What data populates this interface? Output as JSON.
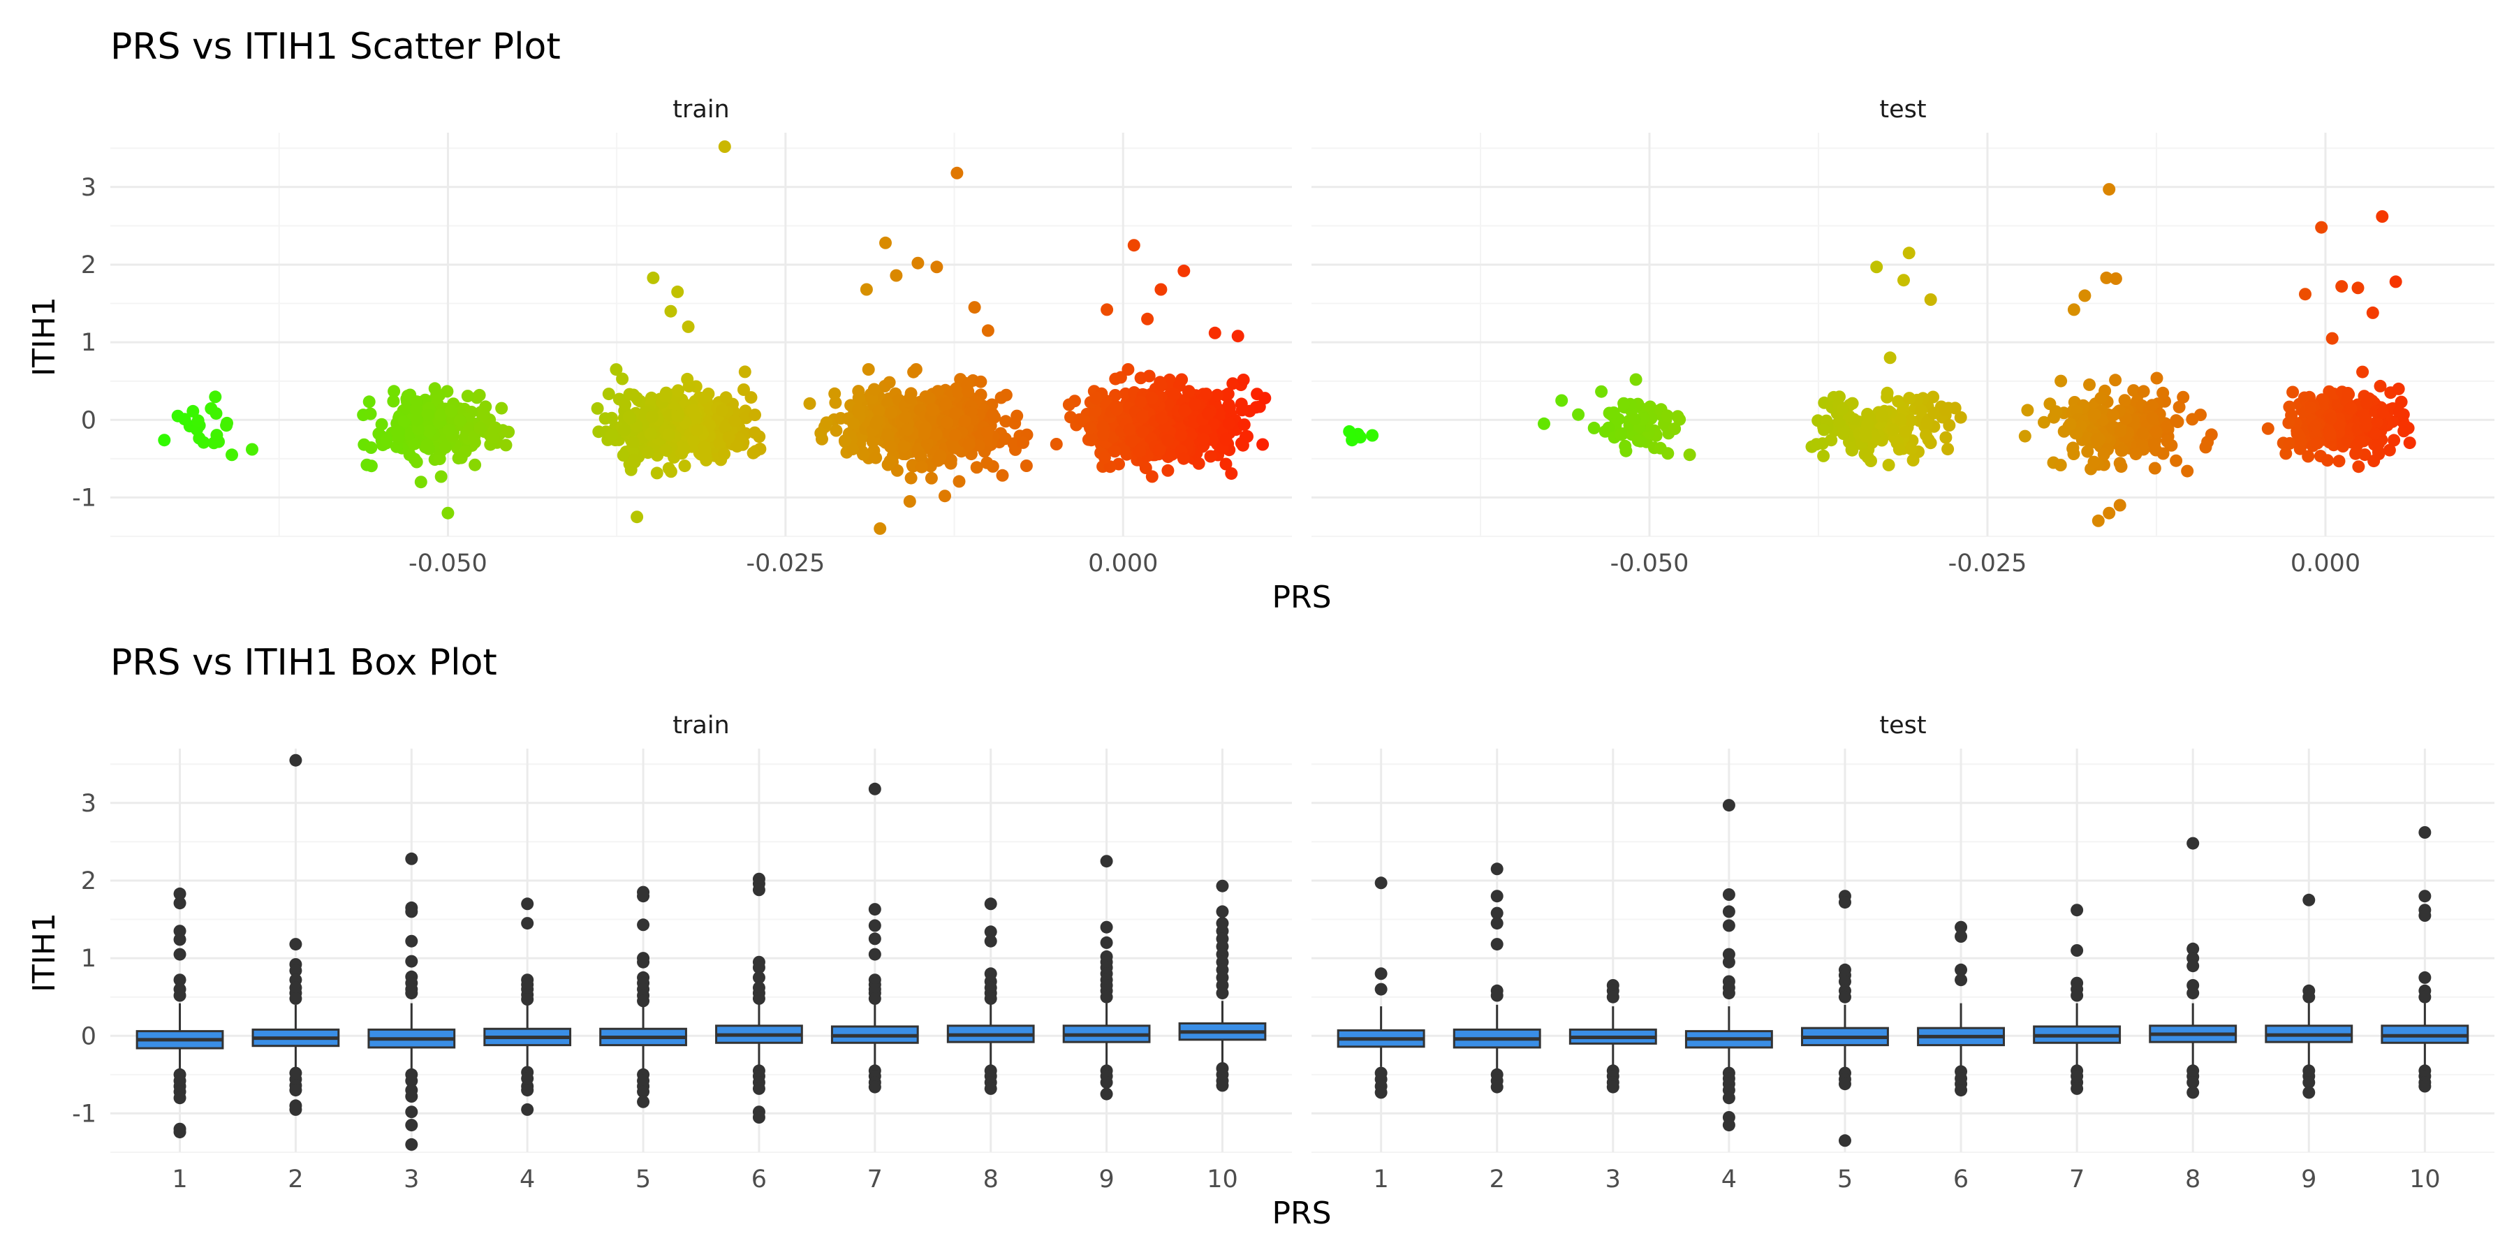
{
  "figure": {
    "background": "#ffffff"
  },
  "colors": {
    "grid_major": "#ebebeb",
    "grid_minor": "#f4f4f4",
    "box_fill": "#3a8ee6",
    "box_line": "#333333",
    "outlier": "#333333",
    "gradient_low": "#22ff00",
    "gradient_high": "#ff1a00"
  },
  "chart_data": [
    {
      "type": "scatter",
      "title": "PRS vs ITIH1 Scatter Plot",
      "xlabel": "PRS",
      "ylabel": "ITIH1",
      "xlim": [
        -0.075,
        0.0125
      ],
      "ylim": [
        -1.5,
        3.7
      ],
      "x_ticks": [
        -0.05,
        -0.025,
        0.0
      ],
      "x_tick_labels": [
        "-0.050",
        "-0.025",
        "0.000"
      ],
      "y_ticks": [
        -1,
        0,
        1,
        2,
        3
      ],
      "y_tick_labels": [
        "-1",
        "0",
        "1",
        "2",
        "3"
      ],
      "color_by": "PRS",
      "color_scale": {
        "low": "#22ff00",
        "high": "#ff1a00"
      },
      "panels": [
        {
          "name": "train",
          "clusters": [
            {
              "x_range": [
                -0.072,
                -0.0645
              ],
              "y_mean": -0.12,
              "y_sd": 0.14,
              "n": 14
            },
            {
              "x_range": [
                -0.057,
                -0.045
              ],
              "y_mean": -0.08,
              "y_sd": 0.2,
              "n": 240
            },
            {
              "x_range": [
                -0.04,
                -0.0255
              ],
              "y_mean": -0.1,
              "y_sd": 0.22,
              "n": 420
            },
            {
              "x_range": [
                -0.024,
                -0.0055
              ],
              "y_mean": -0.08,
              "y_sd": 0.24,
              "n": 560
            },
            {
              "x_range": [
                -0.0055,
                0.011
              ],
              "y_mean": -0.05,
              "y_sd": 0.22,
              "n": 640
            }
          ],
          "outliers": [
            [
              -0.0695,
              0.01
            ],
            [
              -0.07,
              0.05
            ],
            [
              -0.0685,
              -0.01
            ],
            [
              -0.071,
              -0.26
            ],
            [
              -0.066,
              -0.45
            ],
            [
              -0.0645,
              -0.38
            ],
            [
              -0.056,
              -0.58
            ],
            [
              -0.052,
              -0.8
            ],
            [
              -0.05,
              -1.2
            ],
            [
              -0.048,
              -0.58
            ],
            [
              -0.036,
              -1.25
            ],
            [
              -0.0348,
              1.83
            ],
            [
              -0.0335,
              1.4
            ],
            [
              -0.0322,
              1.2
            ],
            [
              -0.033,
              1.65
            ],
            [
              -0.0295,
              3.52
            ],
            [
              -0.028,
              0.62
            ],
            [
              -0.0176,
              2.28
            ],
            [
              -0.0168,
              1.86
            ],
            [
              -0.0152,
              2.02
            ],
            [
              -0.0138,
              1.97
            ],
            [
              -0.019,
              1.68
            ],
            [
              -0.0123,
              3.18
            ],
            [
              -0.0158,
              -1.05
            ],
            [
              -0.018,
              -1.4
            ],
            [
              -0.0132,
              -0.98
            ],
            [
              -0.011,
              1.45
            ],
            [
              -0.01,
              1.15
            ],
            [
              0.0008,
              2.25
            ],
            [
              0.0045,
              1.92
            ],
            [
              0.0028,
              1.68
            ],
            [
              -0.0012,
              1.42
            ],
            [
              0.0018,
              1.3
            ],
            [
              0.0068,
              1.12
            ],
            [
              0.0085,
              1.08
            ],
            [
              0.0105,
              0.28
            ]
          ]
        },
        {
          "name": "test",
          "clusters": [
            {
              "x_range": [
                -0.072,
                -0.071
              ],
              "y_mean": -0.22,
              "y_sd": 0.06,
              "n": 3
            },
            {
              "x_range": [
                -0.0555,
                -0.046
              ],
              "y_mean": -0.06,
              "y_sd": 0.18,
              "n": 70
            },
            {
              "x_range": [
                -0.04,
                -0.026
              ],
              "y_mean": -0.1,
              "y_sd": 0.2,
              "n": 150
            },
            {
              "x_range": [
                -0.0235,
                -0.0065
              ],
              "y_mean": -0.08,
              "y_sd": 0.24,
              "n": 200
            },
            {
              "x_range": [
                -0.005,
                0.0085
              ],
              "y_mean": -0.05,
              "y_sd": 0.22,
              "n": 230
            }
          ],
          "outliers": [
            [
              -0.0722,
              -0.15
            ],
            [
              -0.072,
              -0.26
            ],
            [
              -0.0705,
              -0.2
            ],
            [
              -0.0578,
              -0.05
            ],
            [
              -0.0565,
              0.25
            ],
            [
              -0.051,
              0.52
            ],
            [
              -0.0332,
              1.97
            ],
            [
              -0.0308,
              2.15
            ],
            [
              -0.0312,
              1.8
            ],
            [
              -0.0292,
              1.55
            ],
            [
              -0.0322,
              0.8
            ],
            [
              -0.016,
              2.97
            ],
            [
              -0.0178,
              1.6
            ],
            [
              -0.0162,
              1.83
            ],
            [
              -0.0155,
              1.82
            ],
            [
              -0.0186,
              1.42
            ],
            [
              -0.0168,
              -1.3
            ],
            [
              -0.0152,
              -1.1
            ],
            [
              -0.016,
              -1.2
            ],
            [
              -0.0003,
              2.48
            ],
            [
              0.0042,
              2.62
            ],
            [
              -0.0015,
              1.62
            ],
            [
              0.0012,
              1.72
            ],
            [
              0.0024,
              1.7
            ],
            [
              0.0052,
              1.78
            ],
            [
              0.0005,
              1.05
            ],
            [
              0.0035,
              1.38
            ]
          ]
        }
      ]
    },
    {
      "type": "box",
      "title": "PRS vs ITIH1 Box Plot",
      "xlabel": "PRS",
      "ylabel": "ITIH1",
      "ylim": [
        -1.5,
        3.7
      ],
      "categories": [
        "1",
        "2",
        "3",
        "4",
        "5",
        "6",
        "7",
        "8",
        "9",
        "10"
      ],
      "y_ticks": [
        -1,
        0,
        1,
        2,
        3
      ],
      "y_tick_labels": [
        "-1",
        "0",
        "1",
        "2",
        "3"
      ],
      "panels": [
        {
          "name": "train",
          "boxes": [
            {
              "q1": -0.16,
              "median": -0.05,
              "q3": 0.06,
              "lower": -0.48,
              "upper": 0.42,
              "outliers": [
                1.83,
                1.71,
                1.35,
                1.24,
                1.05,
                0.72,
                0.6,
                0.52,
                -0.5,
                -0.58,
                -0.65,
                -0.72,
                -0.8,
                -1.2,
                -1.24
              ]
            },
            {
              "q1": -0.13,
              "median": -0.03,
              "q3": 0.08,
              "lower": -0.45,
              "upper": 0.4,
              "outliers": [
                3.55,
                1.18,
                0.92,
                0.84,
                0.72,
                0.62,
                0.55,
                0.48,
                -0.48,
                -0.56,
                -0.64,
                -0.7,
                -0.9,
                -0.95
              ]
            },
            {
              "q1": -0.15,
              "median": -0.04,
              "q3": 0.08,
              "lower": -0.47,
              "upper": 0.42,
              "outliers": [
                2.28,
                1.65,
                1.6,
                1.22,
                0.96,
                0.76,
                0.68,
                0.6,
                0.55,
                -0.5,
                -0.58,
                -0.7,
                -0.78,
                -0.98,
                -1.15,
                -1.4
              ]
            },
            {
              "q1": -0.12,
              "median": -0.02,
              "q3": 0.09,
              "lower": -0.43,
              "upper": 0.4,
              "outliers": [
                1.7,
                1.45,
                0.72,
                0.66,
                0.6,
                0.53,
                0.47,
                -0.47,
                -0.55,
                -0.65,
                -0.7,
                -0.95
              ]
            },
            {
              "q1": -0.12,
              "median": -0.02,
              "q3": 0.09,
              "lower": -0.43,
              "upper": 0.4,
              "outliers": [
                1.85,
                1.8,
                1.43,
                1.0,
                0.95,
                0.75,
                0.68,
                0.6,
                0.52,
                0.45,
                -0.5,
                -0.58,
                -0.65,
                -0.72,
                -0.85
              ]
            },
            {
              "q1": -0.09,
              "median": 0.01,
              "q3": 0.13,
              "lower": -0.4,
              "upper": 0.42,
              "outliers": [
                2.02,
                1.96,
                1.88,
                0.95,
                0.88,
                0.75,
                0.62,
                0.55,
                0.48,
                -0.45,
                -0.52,
                -0.6,
                -0.68,
                -0.98,
                -1.05
              ]
            },
            {
              "q1": -0.09,
              "median": 0.0,
              "q3": 0.12,
              "lower": -0.4,
              "upper": 0.42,
              "outliers": [
                3.18,
                1.63,
                1.42,
                1.25,
                1.05,
                0.72,
                0.66,
                0.6,
                0.55,
                0.48,
                -0.45,
                -0.52,
                -0.6,
                -0.66
              ]
            },
            {
              "q1": -0.08,
              "median": 0.01,
              "q3": 0.13,
              "lower": -0.4,
              "upper": 0.42,
              "outliers": [
                1.7,
                1.34,
                1.22,
                0.8,
                0.7,
                0.62,
                0.55,
                0.48,
                -0.45,
                -0.52,
                -0.6,
                -0.68
              ]
            },
            {
              "q1": -0.08,
              "median": 0.01,
              "q3": 0.13,
              "lower": -0.4,
              "upper": 0.42,
              "outliers": [
                2.25,
                1.4,
                1.2,
                1.02,
                0.95,
                0.88,
                0.8,
                0.72,
                0.65,
                0.58,
                0.5,
                -0.45,
                -0.52,
                -0.6,
                -0.75
              ]
            },
            {
              "q1": -0.05,
              "median": 0.05,
              "q3": 0.16,
              "lower": -0.35,
              "upper": 0.45,
              "outliers": [
                1.93,
                1.6,
                1.45,
                1.35,
                1.25,
                1.15,
                1.05,
                0.95,
                0.85,
                0.75,
                0.65,
                0.55,
                -0.42,
                -0.5,
                -0.58,
                -0.64
              ]
            }
          ]
        },
        {
          "name": "test",
          "boxes": [
            {
              "q1": -0.14,
              "median": -0.04,
              "q3": 0.07,
              "lower": -0.4,
              "upper": 0.38,
              "outliers": [
                1.97,
                0.8,
                0.6,
                -0.48,
                -0.56,
                -0.65,
                -0.73
              ]
            },
            {
              "q1": -0.15,
              "median": -0.04,
              "q3": 0.08,
              "lower": -0.45,
              "upper": 0.4,
              "outliers": [
                2.15,
                1.8,
                1.58,
                1.45,
                1.18,
                0.58,
                0.52,
                -0.5,
                -0.58,
                -0.66
              ]
            },
            {
              "q1": -0.1,
              "median": -0.02,
              "q3": 0.08,
              "lower": -0.4,
              "upper": 0.38,
              "outliers": [
                0.65,
                0.58,
                0.5,
                -0.45,
                -0.52,
                -0.6,
                -0.66
              ]
            },
            {
              "q1": -0.15,
              "median": -0.04,
              "q3": 0.06,
              "lower": -0.42,
              "upper": 0.38,
              "outliers": [
                2.97,
                1.82,
                1.6,
                1.42,
                1.05,
                0.95,
                0.7,
                0.62,
                0.55,
                -0.48,
                -0.55,
                -0.62,
                -0.7,
                -0.8,
                -1.05,
                -1.15
              ]
            },
            {
              "q1": -0.12,
              "median": -0.02,
              "q3": 0.1,
              "lower": -0.42,
              "upper": 0.4,
              "outliers": [
                1.8,
                1.72,
                0.85,
                0.78,
                0.7,
                0.58,
                0.5,
                -0.48,
                -0.56,
                -0.62,
                -1.35
              ]
            },
            {
              "q1": -0.12,
              "median": -0.01,
              "q3": 0.1,
              "lower": -0.42,
              "upper": 0.42,
              "outliers": [
                1.4,
                1.28,
                0.85,
                0.72,
                -0.46,
                -0.55,
                -0.62,
                -0.7
              ]
            },
            {
              "q1": -0.09,
              "median": 0.0,
              "q3": 0.12,
              "lower": -0.4,
              "upper": 0.42,
              "outliers": [
                1.62,
                1.1,
                0.68,
                0.6,
                0.52,
                -0.45,
                -0.52,
                -0.6,
                -0.68
              ]
            },
            {
              "q1": -0.08,
              "median": 0.02,
              "q3": 0.13,
              "lower": -0.4,
              "upper": 0.42,
              "outliers": [
                2.48,
                1.12,
                1.0,
                0.9,
                0.65,
                0.55,
                -0.45,
                -0.52,
                -0.6,
                -0.73
              ]
            },
            {
              "q1": -0.08,
              "median": 0.01,
              "q3": 0.13,
              "lower": -0.4,
              "upper": 0.42,
              "outliers": [
                1.75,
                0.58,
                0.5,
                -0.45,
                -0.52,
                -0.6,
                -0.73
              ]
            },
            {
              "q1": -0.09,
              "median": 0.0,
              "q3": 0.13,
              "lower": -0.4,
              "upper": 0.42,
              "outliers": [
                2.62,
                1.8,
                1.62,
                1.55,
                0.75,
                0.58,
                0.5,
                -0.45,
                -0.52,
                -0.6,
                -0.65
              ]
            }
          ]
        }
      ]
    }
  ]
}
